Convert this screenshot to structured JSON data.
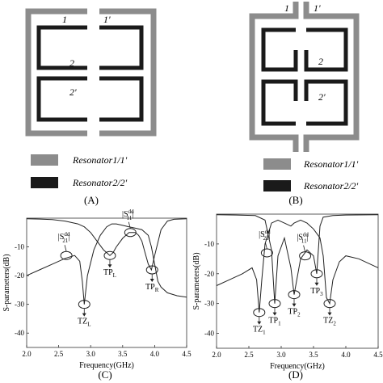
{
  "panels": {
    "A": {
      "caption": "(A)",
      "port_labels": {
        "p1": "1",
        "p1p": "1'",
        "p2": "2",
        "p2p": "2'"
      },
      "legend": [
        {
          "label": "Resonator1/1'",
          "color": "#8c8c8c"
        },
        {
          "label": "Resonator2/2'",
          "color": "#1a1a1a"
        }
      ]
    },
    "B": {
      "caption": "(B)",
      "port_labels": {
        "p1": "1",
        "p1p": "1'",
        "p2": "2",
        "p2p": "2'"
      },
      "legend": [
        {
          "label": "Resonator1/1'",
          "color": "#8c8c8c"
        },
        {
          "label": "Resonator2/2'",
          "color": "#1a1a1a"
        }
      ]
    },
    "C": {
      "caption": "(C)"
    },
    "D": {
      "caption": "(D)"
    }
  },
  "chart_data": [
    {
      "panel": "C",
      "type": "line",
      "xlabel": "Frequency(GHz)",
      "ylabel": "S-parameters(dB)",
      "xlim": [
        2.0,
        4.5
      ],
      "ylim": [
        -45,
        0
      ],
      "xticks": [
        "2.0",
        "2.5",
        "3.0",
        "3.5",
        "4.0",
        "4.5"
      ],
      "yticks": [
        "-10",
        "-20",
        "-30",
        "-40"
      ],
      "series": [
        {
          "label_text": "|S21dd|",
          "x": [
            2.0,
            2.2,
            2.4,
            2.6,
            2.75,
            2.83,
            2.87,
            2.9,
            2.95,
            3.05,
            3.15,
            3.25,
            3.33,
            3.4,
            3.5,
            3.6,
            3.7,
            3.8,
            3.9,
            3.95,
            4.0,
            4.05,
            4.1,
            4.2,
            4.35,
            4.5
          ],
          "y": [
            -20,
            -18,
            -16,
            -14,
            -13,
            -15,
            -22,
            -30,
            -20,
            -11,
            -6,
            -3,
            -2,
            -2,
            -2.5,
            -3,
            -3.5,
            -4,
            -6,
            -10,
            -16,
            -22,
            -24,
            -26,
            -27,
            -27.5
          ]
        },
        {
          "label_text": "|S11dd|",
          "x": [
            2.0,
            2.2,
            2.4,
            2.6,
            2.8,
            2.9,
            3.0,
            3.1,
            3.2,
            3.3,
            3.35,
            3.4,
            3.5,
            3.6,
            3.7,
            3.75,
            3.8,
            3.85,
            3.9,
            3.95,
            4.0,
            4.1,
            4.2,
            4.3,
            4.5
          ],
          "y": [
            -0.2,
            -0.3,
            -0.5,
            -1,
            -2,
            -3,
            -5,
            -8,
            -11,
            -13,
            -12,
            -10,
            -7,
            -5,
            -5,
            -6,
            -8,
            -12,
            -16,
            -18,
            -13,
            -4,
            -1,
            -0.4,
            -0.2
          ]
        }
      ],
      "annotations": [
        {
          "text": "|S21dd|",
          "x": 2.62,
          "y": -13
        },
        {
          "text": "TPL",
          "x": 3.3,
          "y": -13
        },
        {
          "text": "|S11dd|",
          "x": 3.62,
          "y": -5
        },
        {
          "text": "TPR",
          "x": 3.96,
          "y": -18
        },
        {
          "text": "TZL",
          "x": 2.9,
          "y": -30
        }
      ]
    },
    {
      "panel": "D",
      "type": "line",
      "xlabel": "Frequency(GHz)",
      "ylabel": "S-parameters(dB)",
      "xlim": [
        2.0,
        4.5
      ],
      "ylim": [
        -45,
        0
      ],
      "xticks": [
        "2.0",
        "2.5",
        "3.0",
        "3.5",
        "4.0",
        "4.5"
      ],
      "yticks": [
        "-10",
        "-20",
        "-30",
        "-40"
      ],
      "series": [
        {
          "label_text": "|S21dd|",
          "x": [
            2.0,
            2.2,
            2.4,
            2.55,
            2.62,
            2.66,
            2.7,
            2.75,
            2.85,
            2.95,
            3.05,
            3.15,
            3.2,
            3.3,
            3.4,
            3.5,
            3.6,
            3.65,
            3.7,
            3.75,
            3.8,
            3.9,
            4.0,
            4.2,
            4.5
          ],
          "y": [
            -24,
            -22,
            -20,
            -18,
            -22,
            -33,
            -22,
            -10,
            -3,
            -2,
            -3,
            -4,
            -3,
            -2,
            -3,
            -5,
            -8,
            -14,
            -28,
            -30,
            -22,
            -16,
            -14,
            -15,
            -18
          ]
        },
        {
          "label_text": "|S11dd|",
          "x": [
            2.0,
            2.3,
            2.6,
            2.75,
            2.85,
            2.9,
            2.95,
            3.05,
            3.15,
            3.2,
            3.3,
            3.4,
            3.5,
            3.55,
            3.6,
            3.65,
            3.8,
            4.0,
            4.5
          ],
          "y": [
            -0.2,
            -0.3,
            -0.5,
            -2,
            -12,
            -30,
            -14,
            -8,
            -18,
            -27,
            -15,
            -12,
            -14,
            -20,
            -4,
            -1,
            -0.5,
            -0.3,
            -0.2
          ]
        }
      ],
      "annotations": [
        {
          "text": "|S21dd|",
          "x": 2.78,
          "y": -13
        },
        {
          "text": "|S11dd|",
          "x": 3.37,
          "y": -14
        },
        {
          "text": "TZ1",
          "x": 2.66,
          "y": -33
        },
        {
          "text": "TP1",
          "x": 2.9,
          "y": -30
        },
        {
          "text": "TP2",
          "x": 3.2,
          "y": -27
        },
        {
          "text": "TP3",
          "x": 3.55,
          "y": -20
        },
        {
          "text": "TZ2",
          "x": 3.75,
          "y": -30
        }
      ]
    }
  ]
}
